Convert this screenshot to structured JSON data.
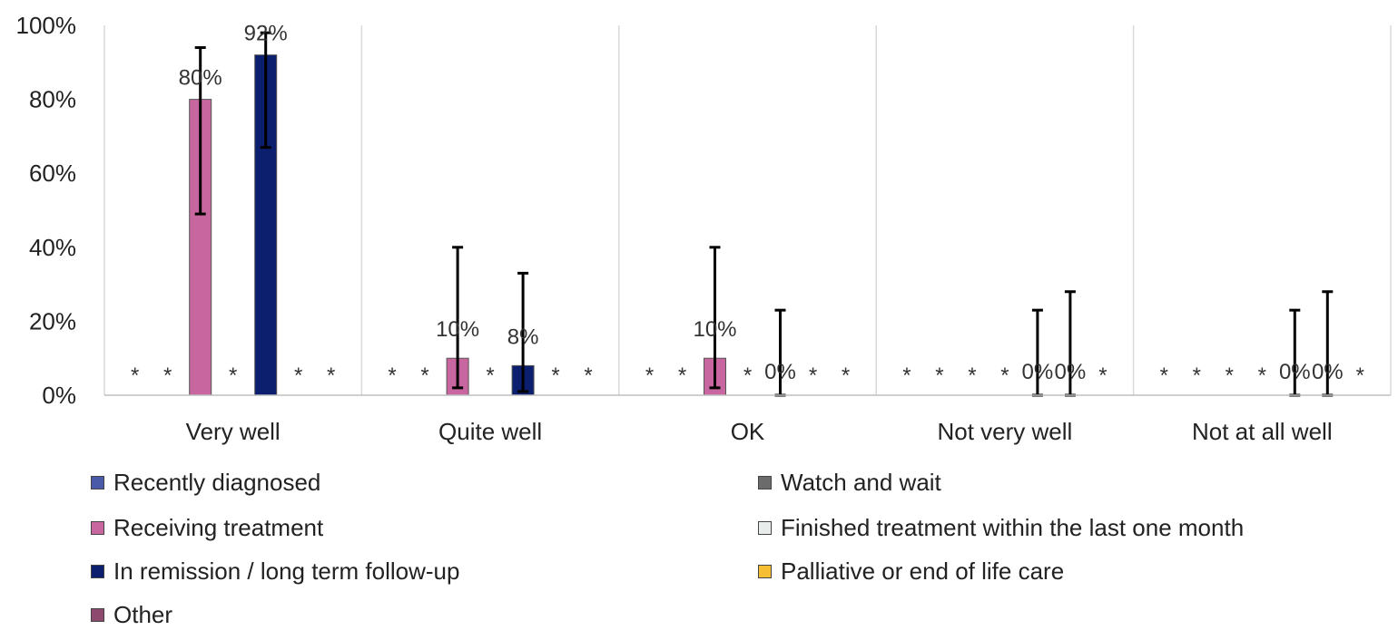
{
  "chart_data": {
    "type": "bar",
    "categories": [
      "Very well",
      "Quite well",
      "OK",
      "Not very well",
      "Not at all well"
    ],
    "ylim": [
      0,
      100
    ],
    "yticks": [
      "0%",
      "20%",
      "40%",
      "60%",
      "80%",
      "100%"
    ],
    "ytick_values": [
      0,
      20,
      40,
      60,
      80,
      100
    ],
    "grid": "vertical category separators",
    "legend_position": "bottom",
    "suppressed_marker": "*",
    "series": [
      {
        "name": "Recently diagnosed",
        "color": "#4a5aa8",
        "values": [
          null,
          null,
          null,
          null,
          null
        ],
        "labels": [
          "*",
          "*",
          "*",
          "*",
          "*"
        ]
      },
      {
        "name": "Watch and wait",
        "color": "#6b6b6b",
        "values": [
          null,
          null,
          null,
          null,
          null
        ],
        "labels": [
          "*",
          "*",
          "*",
          "*",
          "*"
        ]
      },
      {
        "name": "Receiving treatment",
        "color": "#c8679f",
        "values": [
          80,
          10,
          10,
          null,
          null
        ],
        "labels": [
          "80%",
          "10%",
          "10%",
          "*",
          "*"
        ],
        "error_low": [
          49,
          2,
          2,
          null,
          null
        ],
        "error_high": [
          94,
          40,
          40,
          null,
          null
        ]
      },
      {
        "name": "Finished treatment within the last one month",
        "color": "#e8ecea",
        "values": [
          null,
          null,
          null,
          null,
          null
        ],
        "labels": [
          "*",
          "*",
          "*",
          "*",
          "*"
        ]
      },
      {
        "name": "In remission / long term follow-up",
        "color": "#0b1f6e",
        "values": [
          92,
          8,
          0,
          0,
          0
        ],
        "labels": [
          "92%",
          "8%",
          "0%",
          "0%",
          "0%"
        ],
        "error_low": [
          67,
          1,
          0,
          0,
          0
        ],
        "error_high": [
          98,
          33,
          23,
          23,
          23
        ]
      },
      {
        "name": "Palliative or end of life care",
        "color": "#f6bf33",
        "values": [
          null,
          null,
          null,
          0,
          0
        ],
        "labels": [
          "*",
          "*",
          "*",
          "0%",
          "0%"
        ],
        "error_low": [
          null,
          null,
          null,
          0,
          0
        ],
        "error_high": [
          null,
          null,
          null,
          28,
          28
        ]
      },
      {
        "name": "Other",
        "color": "#8e4a6e",
        "values": [
          null,
          null,
          null,
          null,
          null
        ],
        "labels": [
          "*",
          "*",
          "*",
          "*",
          "*"
        ]
      }
    ]
  }
}
